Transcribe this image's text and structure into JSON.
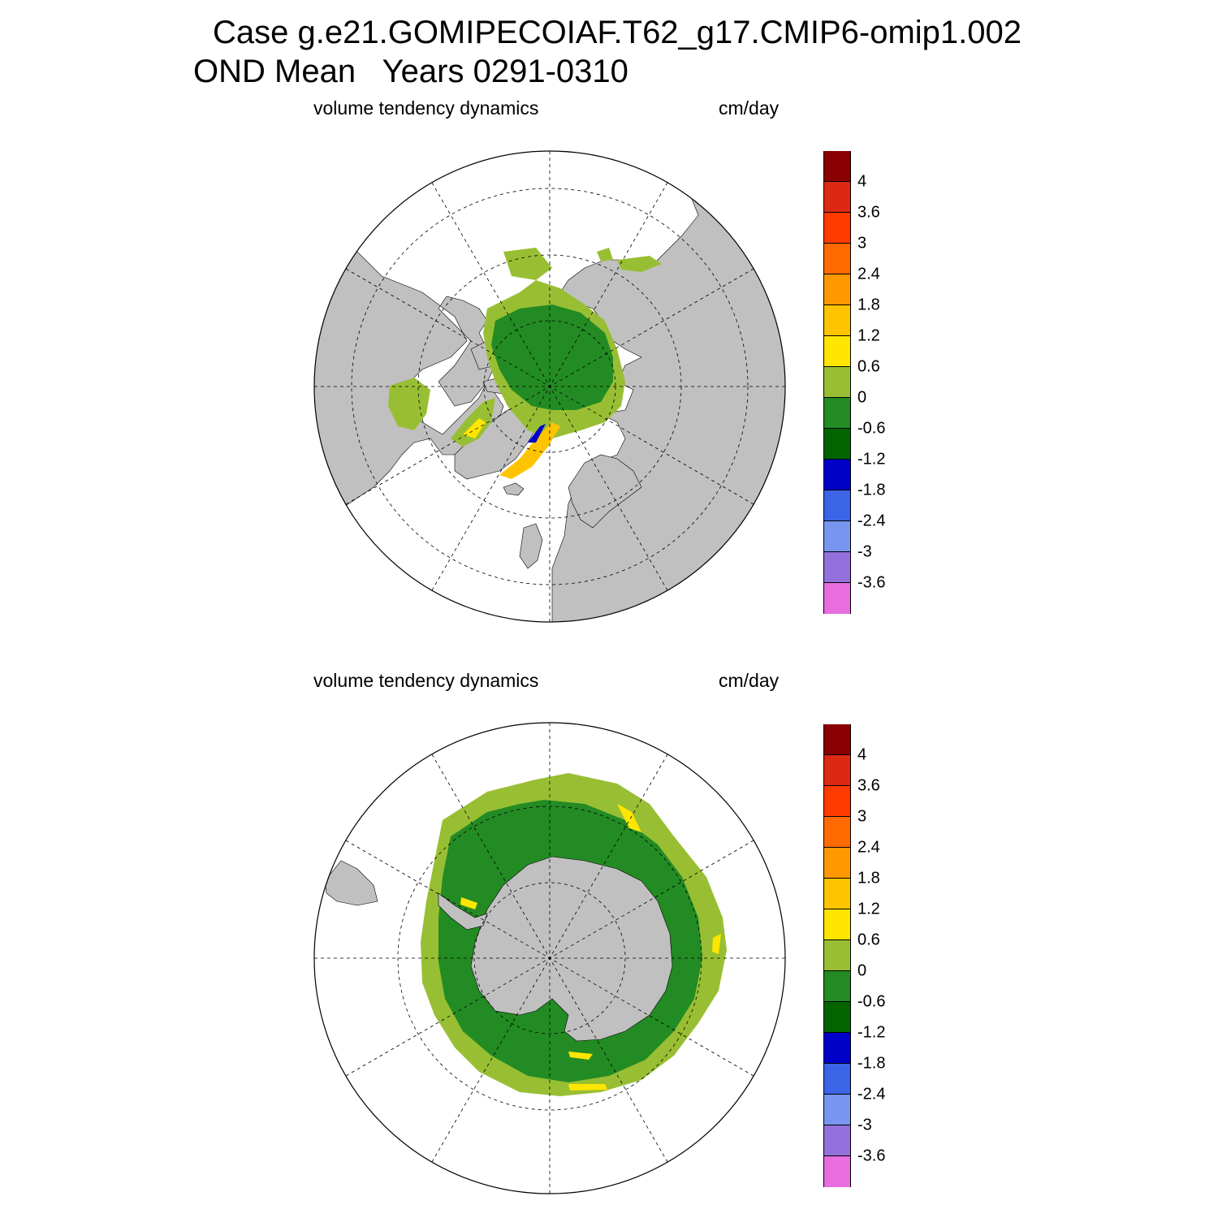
{
  "title": {
    "line1": "Case g.e21.GOMIPECOIAF.T62_g17.CMIP6-omip1.002",
    "line2": "OND Mean   Years 0291-0310"
  },
  "panels": [
    {
      "id": "north",
      "left_label": "volume tendency dynamics",
      "right_label": "cm/day"
    },
    {
      "id": "south",
      "left_label": "volume tendency dynamics",
      "right_label": "cm/day"
    }
  ],
  "colorbar": {
    "colors": [
      "#8b0000",
      "#dc2a12",
      "#ff3b00",
      "#ff6a00",
      "#ff9800",
      "#ffc400",
      "#ffe600",
      "#98bf33",
      "#238b23",
      "#006400",
      "#0000c8",
      "#3c64e6",
      "#7896f0",
      "#9370db",
      "#e86ee0"
    ],
    "labels": [
      "4",
      "3.6",
      "3",
      "2.4",
      "1.8",
      "1.2",
      "0.6",
      "0",
      "-0.6",
      "-1.2",
      "-1.8",
      "-2.4",
      "-3",
      "-3.6"
    ]
  },
  "map_colors": {
    "land": "#c0c0c0",
    "ocean": "#ffffff",
    "ice_lightgreen": "#98bf33",
    "ice_green": "#238b23",
    "ice_darkgreen": "#006400",
    "ice_yellow": "#ffe600",
    "ice_orange": "#ffc400",
    "ice_blue": "#0000c8"
  }
}
